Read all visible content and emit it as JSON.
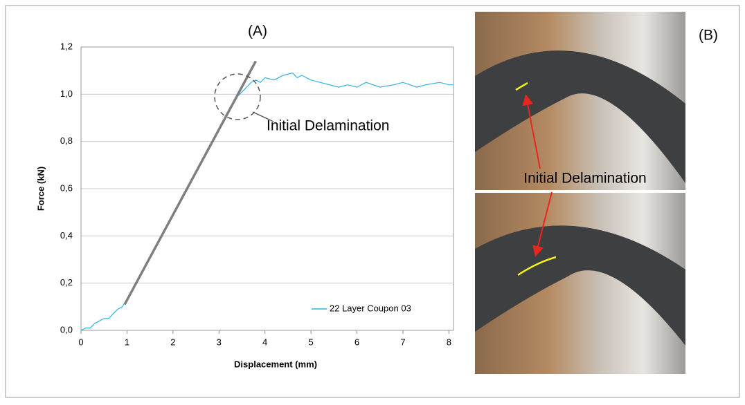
{
  "chart_data": {
    "type": "line",
    "title": "(A)",
    "x_label": "Displacement (mm)",
    "y_label": "Force (kN)",
    "xlim": [
      0,
      8.1
    ],
    "ylim": [
      0,
      1.2
    ],
    "xticks": [
      0,
      1,
      2,
      3,
      4,
      5,
      6,
      7,
      8
    ],
    "yticks": [
      {
        "value": 0,
        "label": "0,0"
      },
      {
        "value": 0.2,
        "label": "0,2"
      },
      {
        "value": 0.4,
        "label": "0,4"
      },
      {
        "value": 0.6,
        "label": "0,6"
      },
      {
        "value": 0.8,
        "label": "0,8"
      },
      {
        "value": 1.0,
        "label": "1,0"
      },
      {
        "value": 1.2,
        "label": "1,2"
      }
    ],
    "grid": true,
    "legend": "lower right",
    "annotation": "Initial Delamination",
    "series": [
      {
        "name": "22 Layer Coupon 03",
        "color": "#2ab4e4",
        "x": [
          0,
          0.1,
          0.2,
          0.3,
          0.4,
          0.5,
          0.6,
          0.7,
          0.8,
          0.9,
          1.2,
          1.5,
          1.8,
          2.0,
          2.3,
          2.5,
          2.6,
          2.8,
          3.0,
          3.1,
          3.2,
          3.3,
          3.4,
          3.5,
          3.6,
          3.7,
          3.8,
          3.9,
          4.0,
          4.2,
          4.4,
          4.6,
          4.7,
          4.8,
          5.0,
          5.2,
          5.4,
          5.6,
          5.8,
          6.0,
          6.2,
          6.5,
          6.8,
          7.0,
          7.3,
          7.5,
          7.8,
          8.0,
          8.1
        ],
        "values": [
          0,
          0.01,
          0.01,
          0.03,
          0.04,
          0.05,
          0.05,
          0.07,
          0.09,
          0.1,
          0.2,
          0.31,
          0.42,
          0.49,
          0.6,
          0.67,
          0.7,
          0.78,
          0.85,
          0.88,
          0.92,
          0.96,
          0.99,
          1.01,
          1.03,
          1.05,
          1.06,
          1.05,
          1.07,
          1.06,
          1.08,
          1.09,
          1.07,
          1.08,
          1.06,
          1.05,
          1.04,
          1.03,
          1.04,
          1.03,
          1.05,
          1.03,
          1.04,
          1.05,
          1.03,
          1.04,
          1.05,
          1.04,
          1.04
        ]
      },
      {
        "color": "#7f7f7f",
        "x": [
          0.95,
          3.8
        ],
        "values": [
          0.11,
          1.14
        ]
      }
    ]
  },
  "panel_b": {
    "label": "(B)",
    "annotation": "Initial Delamination"
  }
}
